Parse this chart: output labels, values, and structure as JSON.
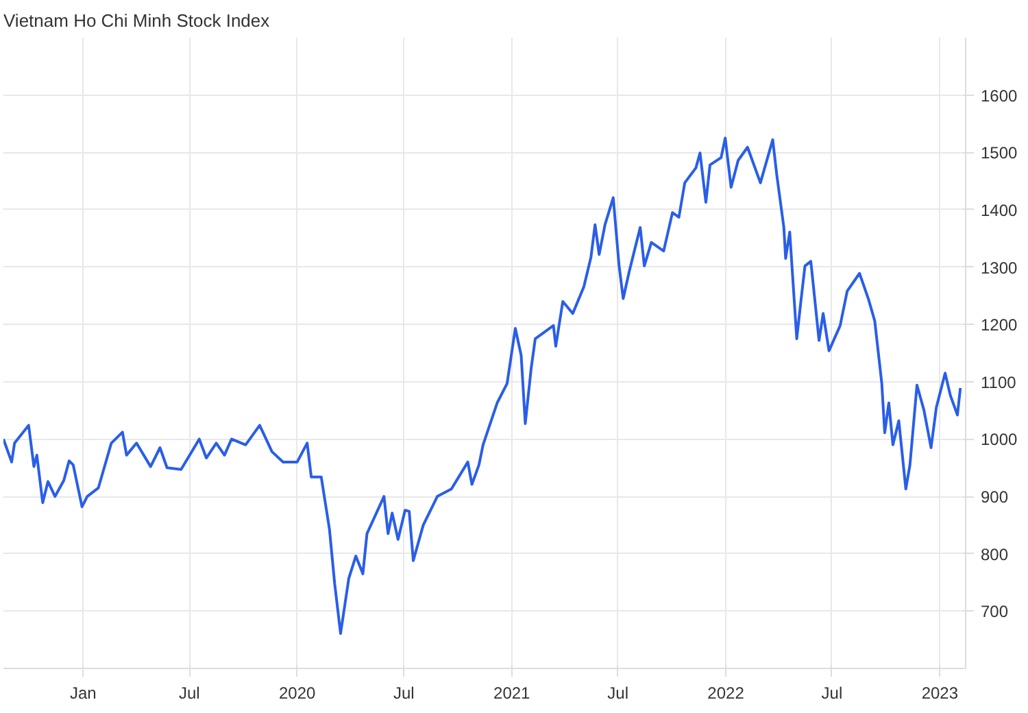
{
  "chart_data": {
    "type": "line",
    "title": "Vietnam Ho Chi Minh Stock Index",
    "x": [
      "2018-08-18",
      "2018-09-01",
      "2018-09-06",
      "2018-09-30",
      "2018-10-09",
      "2018-10-14",
      "2018-10-24",
      "2018-11-02",
      "2018-11-14",
      "2018-11-29",
      "2018-12-08",
      "2018-12-15",
      "2018-12-30",
      "2019-01-08",
      "2019-01-27",
      "2019-02-18",
      "2019-03-09",
      "2019-03-16",
      "2019-04-02",
      "2019-04-26",
      "2019-05-12",
      "2019-05-24",
      "2019-06-17",
      "2019-07-18",
      "2019-07-30",
      "2019-08-16",
      "2019-08-30",
      "2019-09-11",
      "2019-10-05",
      "2019-10-29",
      "2019-11-19",
      "2019-12-08",
      "2020-01-01",
      "2020-01-18",
      "2020-01-25",
      "2020-02-11",
      "2020-02-25",
      "2020-03-05",
      "2020-03-15",
      "2020-03-29",
      "2020-04-10",
      "2020-04-22",
      "2020-04-29",
      "2020-05-28",
      "2020-06-04",
      "2020-06-11",
      "2020-06-21",
      "2020-07-03",
      "2020-07-10",
      "2020-07-17",
      "2020-08-03",
      "2020-08-27",
      "2020-09-20",
      "2020-10-18",
      "2020-10-25",
      "2020-11-06",
      "2020-11-13",
      "2020-12-07",
      "2020-12-24",
      "2021-01-07",
      "2021-01-17",
      "2021-01-24",
      "2021-02-03",
      "2021-02-10",
      "2021-03-13",
      "2021-03-17",
      "2021-03-29",
      "2021-04-15",
      "2021-05-04",
      "2021-05-16",
      "2021-05-23",
      "2021-05-30",
      "2021-06-09",
      "2021-06-23",
      "2021-07-03",
      "2021-07-10",
      "2021-07-20",
      "2021-08-08",
      "2021-08-15",
      "2021-08-27",
      "2021-09-17",
      "2021-10-02",
      "2021-10-13",
      "2021-10-23",
      "2021-11-11",
      "2021-11-18",
      "2021-11-28",
      "2021-12-05",
      "2021-12-24",
      "2021-12-31",
      "2022-01-10",
      "2022-01-22",
      "2022-02-07",
      "2022-03-01",
      "2022-03-22",
      "2022-03-29",
      "2022-04-10",
      "2022-04-13",
      "2022-04-20",
      "2022-05-02",
      "2022-05-09",
      "2022-05-16",
      "2022-05-26",
      "2022-06-09",
      "2022-06-16",
      "2022-06-26",
      "2022-07-15",
      "2022-07-27",
      "2022-08-17",
      "2022-09-01",
      "2022-09-12",
      "2022-09-24",
      "2022-09-29",
      "2022-10-06",
      "2022-10-13",
      "2022-10-23",
      "2022-11-04",
      "2022-11-11",
      "2022-11-23",
      "2022-12-05",
      "2022-12-17",
      "2022-12-26",
      "2023-01-10",
      "2023-01-19",
      "2023-01-31",
      "2023-02-05"
    ],
    "series": [
      {
        "color": "#2a5ee8",
        "values": [
          1000,
          960,
          993,
          1024,
          952,
          972,
          889,
          926,
          900,
          928,
          962,
          955,
          882,
          900,
          915,
          993,
          1012,
          972,
          993,
          952,
          985,
          950,
          947,
          1000,
          967,
          993,
          972,
          1000,
          990,
          1024,
          978,
          960,
          960,
          993,
          934,
          934,
          843,
          747,
          661,
          757,
          796,
          765,
          835,
          900,
          835,
          871,
          825,
          876,
          874,
          788,
          850,
          900,
          913,
          960,
          921,
          955,
          990,
          1063,
          1097,
          1193,
          1146,
          1027,
          1123,
          1175,
          1198,
          1162,
          1240,
          1219,
          1266,
          1317,
          1374,
          1322,
          1374,
          1421,
          1302,
          1245,
          1291,
          1369,
          1302,
          1343,
          1328,
          1395,
          1387,
          1447,
          1473,
          1499,
          1413,
          1478,
          1491,
          1525,
          1439,
          1486,
          1509,
          1447,
          1522,
          1460,
          1369,
          1315,
          1361,
          1175,
          1240,
          1302,
          1310,
          1172,
          1219,
          1154,
          1198,
          1258,
          1289,
          1245,
          1206,
          1097,
          1011,
          1063,
          990,
          1032,
          913,
          955,
          1094,
          1050,
          985,
          1055,
          1115,
          1076,
          1042,
          1089
        ]
      }
    ],
    "xlim": [
      "2018-08-18",
      "2023-02-14"
    ],
    "xticks": [
      {
        "value": "2019-01-01",
        "label": "Jan"
      },
      {
        "value": "2019-07-01",
        "label": "Jul"
      },
      {
        "value": "2020-01-01",
        "label": "2020"
      },
      {
        "value": "2020-07-01",
        "label": "Jul"
      },
      {
        "value": "2021-01-01",
        "label": "2021"
      },
      {
        "value": "2021-07-01",
        "label": "Jul"
      },
      {
        "value": "2022-01-01",
        "label": "2022"
      },
      {
        "value": "2022-07-01",
        "label": "Jul"
      },
      {
        "value": "2023-01-01",
        "label": "2023"
      }
    ],
    "ylim": [
      600,
      1700
    ],
    "yticks": [
      700,
      800,
      900,
      1000,
      1100,
      1200,
      1300,
      1400,
      1500,
      1600
    ],
    "grid": true
  }
}
